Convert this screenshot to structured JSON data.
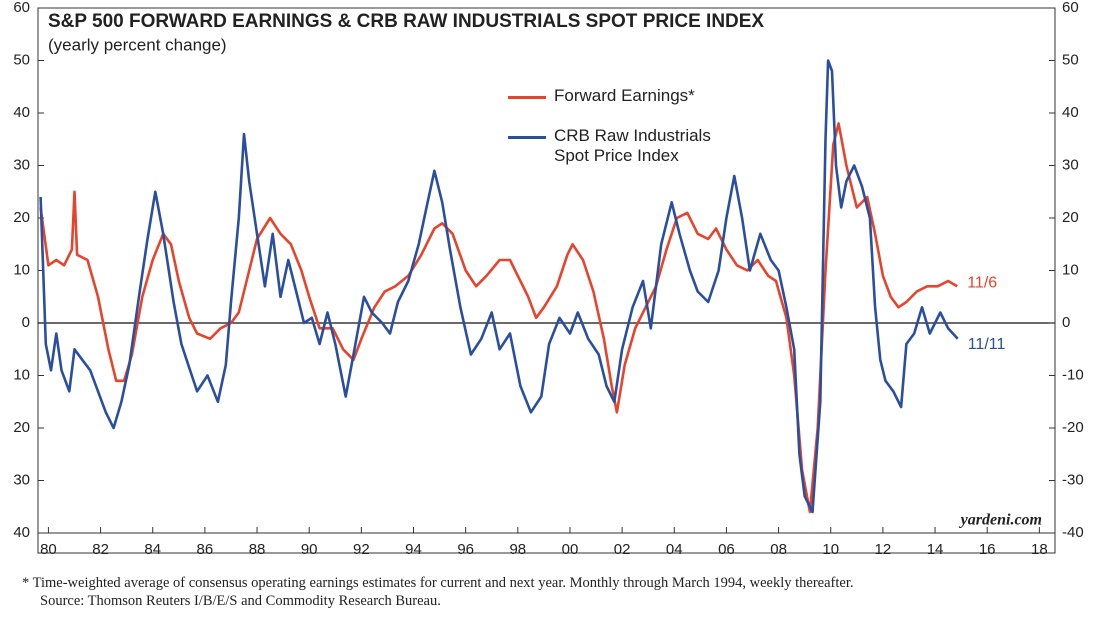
{
  "chart_data": {
    "type": "line",
    "title": "S&P 500 FORWARD EARNINGS & CRB RAW INDUSTRIALS SPOT PRICE INDEX",
    "subtitle": "(yearly percent change)",
    "credit": "yardeni.com",
    "footnote": "*  Time-weighted average of consensus operating earnings estimates for current and next year. Monthly through March 1994, weekly thereafter.",
    "source": "Source: Thomson Reuters I/B/E/S and Commodity Research Bureau.",
    "legend": "upper center",
    "xlim": [
      1979.6,
      2018.6
    ],
    "xticks": [
      {
        "value": 1980,
        "label": "80"
      },
      {
        "value": 1982,
        "label": "82"
      },
      {
        "value": 1984,
        "label": "84"
      },
      {
        "value": 1986,
        "label": "86"
      },
      {
        "value": 1988,
        "label": "88"
      },
      {
        "value": 1990,
        "label": "90"
      },
      {
        "value": 1992,
        "label": "92"
      },
      {
        "value": 1994,
        "label": "94"
      },
      {
        "value": 1996,
        "label": "96"
      },
      {
        "value": 1998,
        "label": "98"
      },
      {
        "value": 2000,
        "label": "00"
      },
      {
        "value": 2002,
        "label": "02"
      },
      {
        "value": 2004,
        "label": "04"
      },
      {
        "value": 2006,
        "label": "06"
      },
      {
        "value": 2008,
        "label": "08"
      },
      {
        "value": 2010,
        "label": "10"
      },
      {
        "value": 2012,
        "label": "12"
      },
      {
        "value": 2014,
        "label": "14"
      },
      {
        "value": 2016,
        "label": "16"
      },
      {
        "value": 2018,
        "label": "18"
      }
    ],
    "ylim": [
      -40,
      60
    ],
    "yticks": [
      {
        "value": -40,
        "label": "40"
      },
      {
        "value": -30,
        "label": "30"
      },
      {
        "value": -20,
        "label": "20"
      },
      {
        "value": -10,
        "label": "10"
      },
      0,
      10,
      20,
      30,
      40,
      50,
      60
    ],
    "y2lim": [
      -40,
      60
    ],
    "y2ticks": [
      -40,
      -30,
      -20,
      -10,
      0,
      10,
      20,
      30,
      40,
      50,
      60
    ],
    "series": [
      {
        "name": "Forward Earnings*",
        "color": "#e8432b",
        "end_label": "11/6",
        "x": [
          1979.7,
          1980.0,
          1980.3,
          1980.6,
          1980.9,
          1981.0,
          1981.1,
          1981.5,
          1981.9,
          1982.3,
          1982.6,
          1982.9,
          1983.2,
          1983.6,
          1984.0,
          1984.4,
          1984.7,
          1985.0,
          1985.4,
          1985.7,
          1986.2,
          1986.6,
          1987.0,
          1987.3,
          1987.7,
          1988.0,
          1988.5,
          1988.9,
          1989.3,
          1989.7,
          1990.0,
          1990.4,
          1990.9,
          1991.3,
          1991.7,
          1992.0,
          1992.5,
          1992.9,
          1993.3,
          1993.8,
          1994.3,
          1994.8,
          1995.1,
          1995.5,
          1996.0,
          1996.4,
          1996.8,
          1997.3,
          1997.7,
          1998.0,
          1998.4,
          1998.7,
          1999.0,
          1999.5,
          1999.9,
          2000.1,
          2000.5,
          2000.9,
          2001.3,
          2001.6,
          2001.8,
          2002.1,
          2002.5,
          2002.9,
          2003.3,
          2003.7,
          2004.1,
          2004.5,
          2004.9,
          2005.3,
          2005.6,
          2006.0,
          2006.4,
          2006.8,
          2007.2,
          2007.6,
          2007.9,
          2008.3,
          2008.6,
          2008.9,
          2009.2,
          2009.5,
          2009.8,
          2010.1,
          2010.3,
          2010.6,
          2011.0,
          2011.4,
          2011.7,
          2012.0,
          2012.3,
          2012.6,
          2012.9,
          2013.3,
          2013.7,
          2014.1,
          2014.5,
          2014.85
        ],
        "values": [
          22,
          11,
          12,
          11,
          14,
          25,
          13,
          12,
          5,
          -5,
          -11,
          -11,
          -6,
          5,
          12,
          17,
          15,
          8,
          1,
          -2,
          -3,
          -1,
          0,
          2,
          10,
          16,
          20,
          17,
          15,
          10,
          5,
          -1,
          -1,
          -5,
          -7,
          -3,
          3,
          6,
          7,
          9,
          13,
          18,
          19,
          17,
          10,
          7,
          9,
          12,
          12,
          9,
          5,
          1,
          3,
          7,
          13,
          15,
          12,
          6,
          -3,
          -12,
          -17,
          -8,
          -1,
          3,
          7,
          14,
          20,
          21,
          17,
          16,
          18,
          14,
          11,
          10,
          12,
          9,
          8,
          1,
          -10,
          -28,
          -36,
          -20,
          10,
          34,
          38,
          30,
          22,
          24,
          17,
          9,
          5,
          3,
          4,
          6,
          7,
          7,
          8,
          7
        ]
      },
      {
        "name": "CRB Raw Industrials Spot Price Index",
        "color": "#2a4fa0",
        "end_label": "11/11",
        "x": [
          1979.7,
          1979.9,
          1980.1,
          1980.3,
          1980.5,
          1980.8,
          1981.0,
          1981.3,
          1981.6,
          1981.9,
          1982.2,
          1982.5,
          1982.8,
          1983.1,
          1983.5,
          1983.8,
          1984.1,
          1984.4,
          1984.8,
          1985.1,
          1985.3,
          1985.7,
          1986.1,
          1986.5,
          1986.8,
          1987.0,
          1987.3,
          1987.5,
          1987.7,
          1988.0,
          1988.3,
          1988.6,
          1988.9,
          1989.2,
          1989.5,
          1989.8,
          1990.1,
          1990.4,
          1990.7,
          1991.0,
          1991.4,
          1991.7,
          1992.1,
          1992.4,
          1992.8,
          1993.1,
          1993.4,
          1993.8,
          1994.2,
          1994.5,
          1994.8,
          1995.1,
          1995.4,
          1995.8,
          1996.2,
          1996.6,
          1997.0,
          1997.3,
          1997.7,
          1998.1,
          1998.5,
          1998.9,
          1999.2,
          1999.6,
          2000.0,
          2000.3,
          2000.7,
          2001.1,
          2001.4,
          2001.7,
          2002.0,
          2002.4,
          2002.8,
          2003.1,
          2003.5,
          2003.9,
          2004.2,
          2004.6,
          2004.9,
          2005.3,
          2005.7,
          2006.0,
          2006.3,
          2006.6,
          2006.9,
          2007.3,
          2007.7,
          2008.0,
          2008.3,
          2008.6,
          2008.8,
          2009.0,
          2009.3,
          2009.6,
          2009.8,
          2009.9,
          2010.05,
          2010.2,
          2010.4,
          2010.6,
          2010.9,
          2011.2,
          2011.5,
          2011.7,
          2011.9,
          2012.1,
          2012.4,
          2012.7,
          2012.9,
          2013.2,
          2013.5,
          2013.8,
          2014.2,
          2014.5,
          2014.87
        ],
        "values": [
          24,
          -4,
          -9,
          -2,
          -9,
          -13,
          -5,
          -7,
          -9,
          -13,
          -17,
          -20,
          -15,
          -8,
          6,
          16,
          25,
          17,
          4,
          -4,
          -7,
          -13,
          -10,
          -15,
          -8,
          4,
          20,
          36,
          27,
          17,
          7,
          17,
          5,
          12,
          6,
          0,
          1,
          -4,
          2,
          -4,
          -14,
          -6,
          5,
          2,
          0,
          -2,
          4,
          8,
          15,
          22,
          29,
          23,
          14,
          3,
          -6,
          -3,
          2,
          -5,
          -2,
          -12,
          -17,
          -14,
          -4,
          1,
          -2,
          2,
          -3,
          -6,
          -12,
          -15,
          -5,
          3,
          8,
          -1,
          15,
          23,
          17,
          10,
          6,
          4,
          10,
          20,
          28,
          20,
          10,
          17,
          12,
          10,
          3,
          -5,
          -25,
          -33,
          -36,
          -15,
          35,
          50,
          48,
          30,
          22,
          27,
          30,
          26,
          20,
          3,
          -7,
          -11,
          -13,
          -16,
          -4,
          -2,
          3,
          -2,
          2,
          -1,
          -3
        ]
      }
    ]
  }
}
